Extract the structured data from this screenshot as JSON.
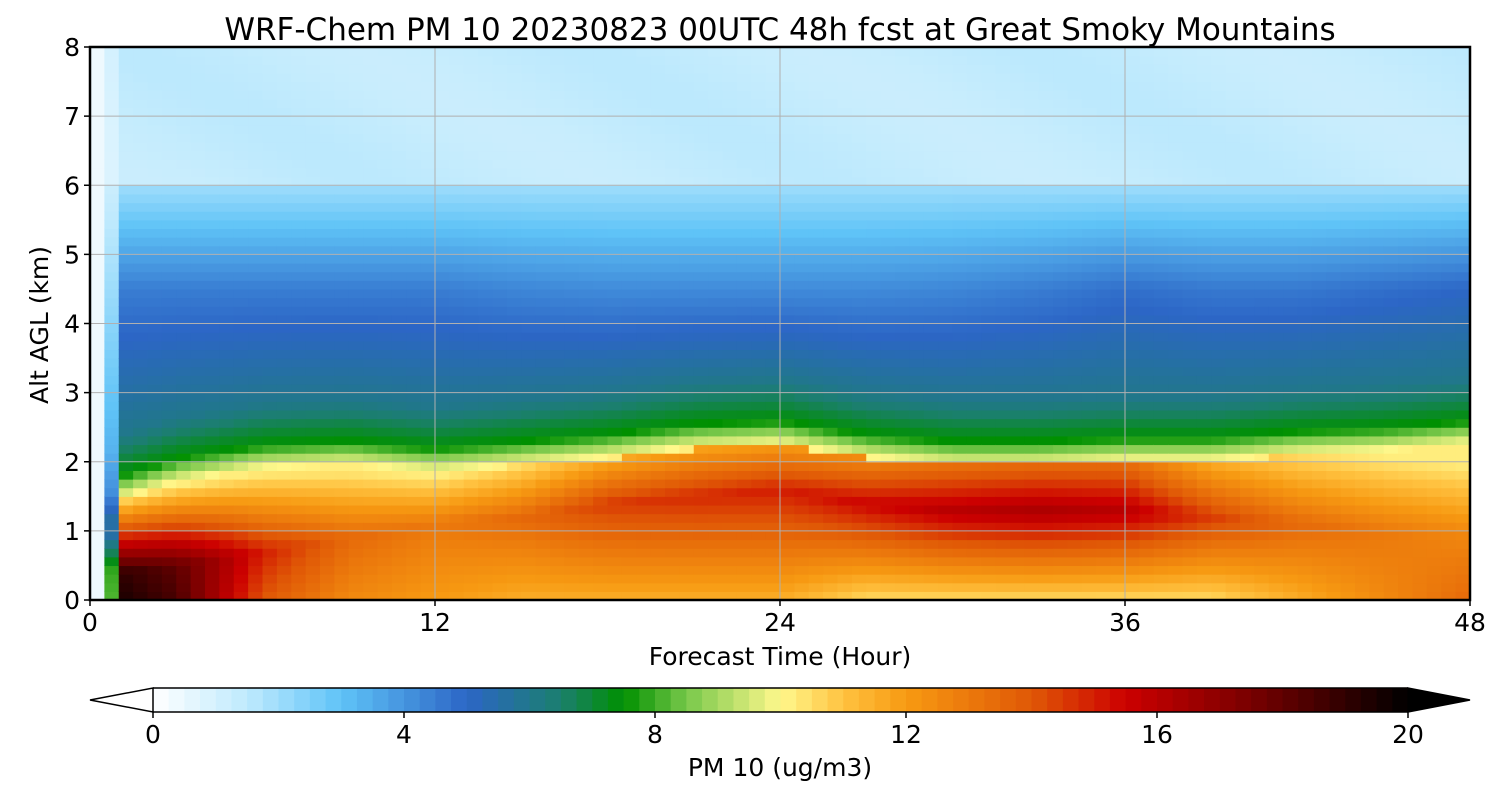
{
  "chart_data": {
    "type": "heatmap",
    "title": "WRF-Chem PM 10  20230823 00UTC 48h fcst at Great Smoky Mountains",
    "xlabel": "Forecast Time (Hour)",
    "ylabel": "Alt AGL (km)",
    "xlim": [
      0,
      48
    ],
    "ylim": [
      0,
      8
    ],
    "x_ticks": [
      "0",
      "12",
      "24",
      "36",
      "48"
    ],
    "y_ticks": [
      "0",
      "1",
      "2",
      "3",
      "4",
      "5",
      "6",
      "7",
      "8"
    ],
    "grid": true,
    "colorbar": {
      "label": "PM 10  (ug/m3)",
      "range": [
        0,
        20
      ],
      "ticks": [
        "0",
        "4",
        "8",
        "12",
        "16",
        "20"
      ],
      "extend": "both",
      "colors": [
        {
          "v": 0,
          "c": "#ffffff"
        },
        {
          "v": 1.5,
          "c": "#bfeafd"
        },
        {
          "v": 3,
          "c": "#5fc3f7"
        },
        {
          "v": 5,
          "c": "#2c66c6"
        },
        {
          "v": 6.5,
          "c": "#1b7f6e"
        },
        {
          "v": 7.5,
          "c": "#009000"
        },
        {
          "v": 8.5,
          "c": "#78c84a"
        },
        {
          "v": 10,
          "c": "#fff88c"
        },
        {
          "v": 11,
          "c": "#ffc240"
        },
        {
          "v": 12,
          "c": "#f79a12"
        },
        {
          "v": 14,
          "c": "#e05806"
        },
        {
          "v": 15.5,
          "c": "#cc0000"
        },
        {
          "v": 17.5,
          "c": "#780000"
        },
        {
          "v": 20,
          "c": "#000000"
        }
      ]
    },
    "field_profile": {
      "hours": [
        0,
        1,
        3,
        6,
        9,
        12,
        15,
        18,
        21,
        24,
        27,
        30,
        33,
        36,
        39,
        42,
        45,
        48
      ],
      "core_max": [
        2,
        19,
        18,
        15,
        13.5,
        13,
        13.5,
        14.5,
        14.8,
        15,
        15.5,
        16,
        16.3,
        16,
        14.5,
        13.5,
        13,
        12.5
      ],
      "mid_value": [
        2,
        13,
        12.5,
        12.5,
        12.5,
        12.5,
        13,
        14,
        14.3,
        14.5,
        15,
        15.8,
        16,
        15.8,
        14,
        13,
        12.5,
        12
      ],
      "top_km": [
        0.8,
        1.8,
        2.05,
        2.25,
        2.3,
        2.2,
        2.3,
        2.4,
        2.55,
        2.6,
        2.4,
        2.3,
        2.3,
        2.35,
        2.35,
        2.45,
        2.5,
        2.6
      ],
      "core_km": [
        0.5,
        0.4,
        0.5,
        0.7,
        0.9,
        1.1,
        1.2,
        1.4,
        1.5,
        1.6,
        1.4,
        1.3,
        1.3,
        1.3,
        1.2,
        1.1,
        1.0,
        1.0
      ],
      "surface_value": [
        2,
        19.5,
        18.5,
        14,
        12.5,
        12,
        11.5,
        11.5,
        11.5,
        11.5,
        10.5,
        10.5,
        10.5,
        10.5,
        10.5,
        11.5,
        12.5,
        13.5
      ],
      "aloft_value": [
        0.5,
        4.5,
        4.5,
        4.5,
        4.5,
        4.5,
        4.3,
        4.2,
        4.2,
        4.2,
        4.2,
        4.3,
        4.5,
        4.8,
        4.6,
        4.6,
        4.8,
        5.0
      ],
      "upper_value": 1.4
    }
  }
}
